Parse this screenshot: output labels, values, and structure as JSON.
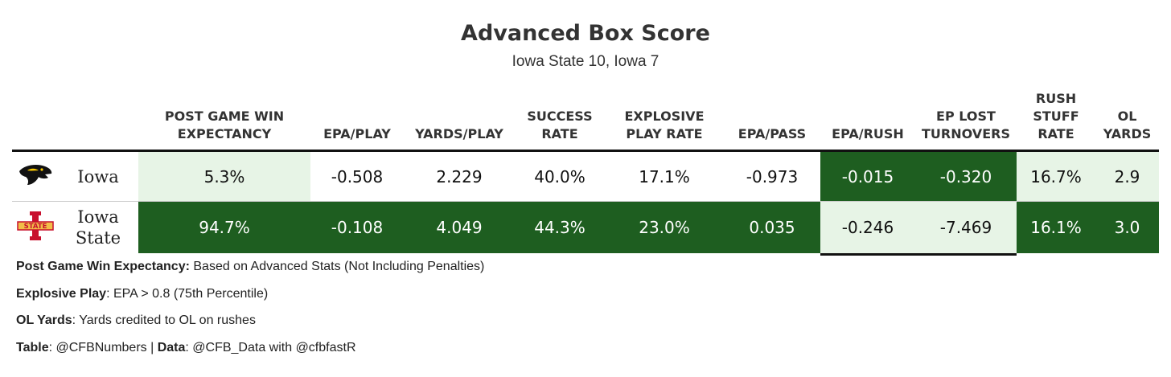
{
  "colors": {
    "dark": "#1e5e20",
    "light": "#e7f4e6",
    "white": "#ffffff"
  },
  "chart_data": {
    "type": "table",
    "title": "Advanced Box Score",
    "subtitle": "Iowa State 10, Iowa 7",
    "columns": [
      "POST GAME WIN\nEXPECTANCY",
      "EPA/PLAY",
      "YARDS/PLAY",
      "SUCCESS\nRATE",
      "EXPLOSIVE\nPLAY RATE",
      "EPA/PASS",
      "EPA/RUSH",
      "EP LOST\nTURNOVERS",
      "RUSH\nSTUFF\nRATE",
      "OL\nYARDS"
    ],
    "rows": [
      {
        "team": "Iowa",
        "logo": "iowa-hawkeye-logo",
        "values": [
          "5.3%",
          "-0.508",
          "2.229",
          "40.0%",
          "17.1%",
          "-0.973",
          "-0.015",
          "-0.320",
          "16.7%",
          "2.9"
        ],
        "shading": [
          "light",
          "white",
          "white",
          "white",
          "white",
          "white",
          "dark",
          "dark",
          "light",
          "light"
        ]
      },
      {
        "team": "Iowa\nState",
        "logo": "iowa-state-logo",
        "values": [
          "94.7%",
          "-0.108",
          "4.049",
          "44.3%",
          "23.0%",
          "0.035",
          "-0.246",
          "-7.469",
          "16.1%",
          "3.0"
        ],
        "shading": [
          "dark",
          "dark",
          "dark",
          "dark",
          "dark",
          "dark",
          "light",
          "light",
          "dark",
          "dark"
        ]
      }
    ]
  },
  "footnotes": [
    {
      "label": "Post Game Win Expectancy:",
      "text": " Based on Advanced Stats (Not Including Penalties)"
    },
    {
      "label": "Explosive Play",
      "text": ": EPA > 0.8 (75th Percentile)"
    },
    {
      "label": "OL Yards",
      "text": ": Yards credited to OL on rushes"
    },
    {
      "label": "Table",
      "text": ": @CFBNumbers | ",
      "label2": "Data",
      "text2": ": @CFB_Data with @cfbfastR"
    }
  ]
}
